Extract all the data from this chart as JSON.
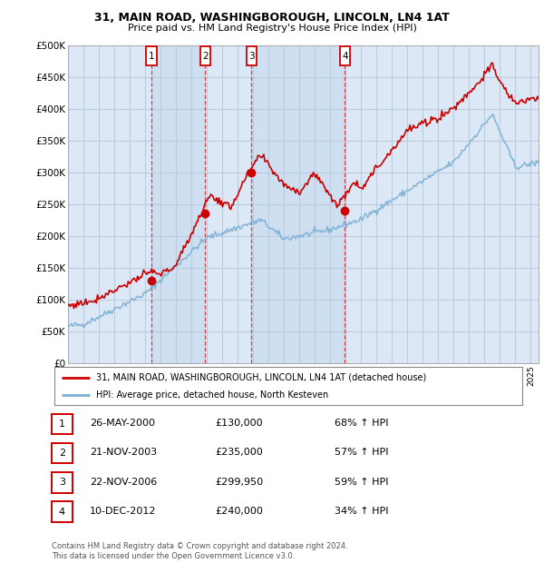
{
  "title": "31, MAIN ROAD, WASHINGBOROUGH, LINCOLN, LN4 1AT",
  "subtitle": "Price paid vs. HM Land Registry's House Price Index (HPI)",
  "background_color": "#ffffff",
  "plot_bg_color": "#dce8f5",
  "plot_bg_color2": "#e8f0f8",
  "grid_color": "#bbccdd",
  "ylim": [
    0,
    500000
  ],
  "yticks": [
    0,
    50000,
    100000,
    150000,
    200000,
    250000,
    300000,
    350000,
    400000,
    450000,
    500000
  ],
  "ytick_labels": [
    "£0",
    "£50K",
    "£100K",
    "£150K",
    "£200K",
    "£250K",
    "£300K",
    "£350K",
    "£400K",
    "£450K",
    "£500K"
  ],
  "sale_year_floats": [
    2000.4,
    2003.89,
    2006.89,
    2012.94
  ],
  "sale_prices": [
    130000,
    235000,
    299950,
    240000
  ],
  "sale_labels": [
    "1",
    "2",
    "3",
    "4"
  ],
  "legend_line1": "31, MAIN ROAD, WASHINGBOROUGH, LINCOLN, LN4 1AT (detached house)",
  "legend_line2": "HPI: Average price, detached house, North Kesteven",
  "table_rows": [
    [
      "1",
      "26-MAY-2000",
      "£130,000",
      "68% ↑ HPI"
    ],
    [
      "2",
      "21-NOV-2003",
      "£235,000",
      "57% ↑ HPI"
    ],
    [
      "3",
      "22-NOV-2006",
      "£299,950",
      "59% ↑ HPI"
    ],
    [
      "4",
      "10-DEC-2012",
      "£240,000",
      "34% ↑ HPI"
    ]
  ],
  "footer": "Contains HM Land Registry data © Crown copyright and database right 2024.\nThis data is licensed under the Open Government Licence v3.0.",
  "red_color": "#cc0000",
  "blue_color": "#7bafd4",
  "xlim_left": 1995.0,
  "xlim_right": 2025.5
}
